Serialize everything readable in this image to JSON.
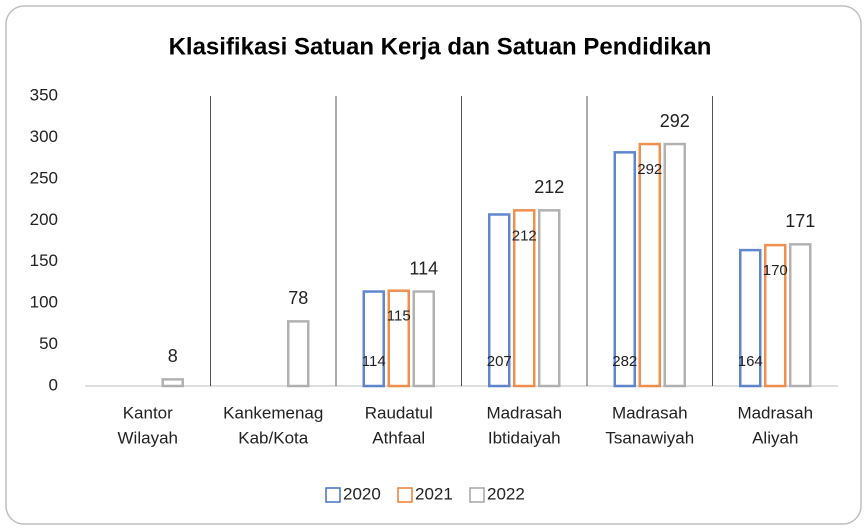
{
  "chart_data": {
    "type": "bar",
    "title": "Klasifikasi Satuan Kerja dan Satuan Pendidikan",
    "categories": [
      [
        "Kantor",
        "Wilayah"
      ],
      [
        "Kankemenag",
        "Kab/Kota"
      ],
      [
        "Raudatul",
        "Athfaal"
      ],
      [
        "Madrasah",
        "Ibtidaiyah"
      ],
      [
        "Madrasah",
        "Tsanawiyah"
      ],
      [
        "Madrasah",
        "Aliyah"
      ]
    ],
    "series": [
      {
        "name": "2020",
        "color": "#4472c4",
        "values": [
          null,
          null,
          114,
          207,
          282,
          164
        ]
      },
      {
        "name": "2021",
        "color": "#ed7d31",
        "values": [
          null,
          null,
          115,
          212,
          292,
          170
        ]
      },
      {
        "name": "2022",
        "color": "#a5a5a5",
        "values": [
          8,
          78,
          114,
          212,
          292,
          171
        ]
      }
    ],
    "ylim": [
      0,
      350
    ],
    "yticks": [
      0,
      50,
      100,
      150,
      200,
      250,
      300,
      350
    ],
    "legend": "bottom"
  }
}
